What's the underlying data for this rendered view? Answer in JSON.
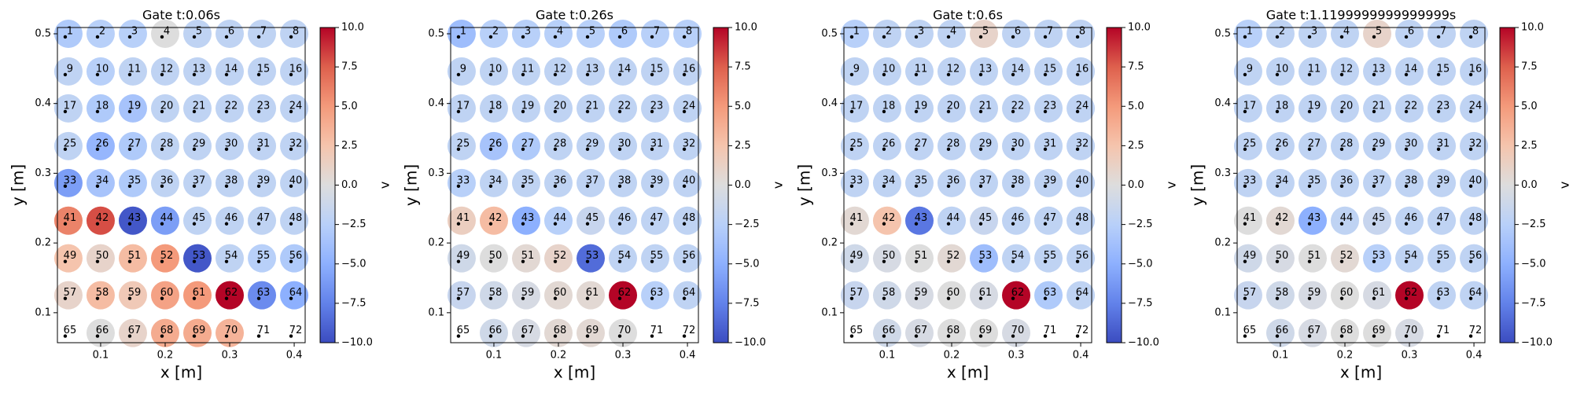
{
  "chart_data": [
    {
      "type": "scatter",
      "title": "Gate t:0.06s",
      "xlabel": "x [m]",
      "ylabel": "y [m]",
      "colorbar_label": "v",
      "colormap": "coolwarm",
      "xlim": [
        0.033,
        0.417
      ],
      "ylim": [
        0.057,
        0.509
      ],
      "xticks": [
        0.1,
        0.2,
        0.3,
        0.4
      ],
      "yticks": [
        0.1,
        0.2,
        0.3,
        0.4,
        0.5
      ],
      "clim": [
        -10,
        10
      ],
      "cticks": [
        {
          "value": -10,
          "label": "−10.0"
        },
        {
          "value": -7.5,
          "label": "−7.5"
        },
        {
          "value": -5,
          "label": "−5.0"
        },
        {
          "value": -2.5,
          "label": "−2.5"
        },
        {
          "value": 0,
          "label": "0.0"
        },
        2.5,
        {
          "value": 5,
          "label": "5.0"
        },
        7.5,
        {
          "value": 10,
          "label": "10.0"
        }
      ],
      "x": [
        0.05,
        0.1,
        0.15,
        0.2,
        0.25,
        0.3,
        0.35,
        0.4
      ],
      "y": [
        0.5,
        0.446,
        0.393,
        0.339,
        0.286,
        0.232,
        0.178,
        0.125,
        0.071
      ],
      "labels": [
        [
          1,
          2,
          3,
          4,
          5,
          6,
          7,
          8
        ],
        [
          9,
          10,
          11,
          12,
          13,
          14,
          15,
          16
        ],
        [
          17,
          18,
          19,
          20,
          21,
          22,
          23,
          24
        ],
        [
          25,
          26,
          27,
          28,
          29,
          30,
          31,
          32
        ],
        [
          33,
          34,
          35,
          36,
          37,
          38,
          39,
          40
        ],
        [
          41,
          42,
          43,
          44,
          45,
          46,
          47,
          48
        ],
        [
          49,
          50,
          51,
          52,
          53,
          54,
          55,
          56
        ],
        [
          57,
          58,
          59,
          60,
          61,
          62,
          63,
          64
        ],
        [
          65,
          66,
          67,
          68,
          69,
          70,
          71,
          72
        ]
      ],
      "values": [
        [
          -3,
          -2.5,
          -2.5,
          0,
          -2,
          -2,
          -2,
          -2
        ],
        [
          -2,
          -2.5,
          -2,
          -2,
          -2,
          -2,
          -2,
          -2
        ],
        [
          -2,
          -3,
          -3.5,
          -2,
          -2,
          -2,
          -2,
          -2
        ],
        [
          -2,
          -4.5,
          -3,
          -2,
          -2,
          -2,
          -2,
          -2
        ],
        [
          -6,
          -3.5,
          -3,
          -2,
          -2,
          -2,
          -2,
          -2
        ],
        [
          6,
          8,
          -9.5,
          -6,
          -2,
          -2,
          -2,
          -2
        ],
        [
          2.5,
          1,
          3,
          5,
          -9.5,
          -2,
          -2.5,
          -3
        ],
        [
          1,
          3,
          2,
          4.5,
          5,
          10,
          -7,
          -5
        ],
        [
          null,
          0,
          1,
          4,
          4,
          3.5,
          null,
          null
        ]
      ]
    },
    {
      "type": "scatter",
      "title": "Gate t:0.26s",
      "xlabel": "x [m]",
      "ylabel": "y [m]",
      "colorbar_label": "v",
      "colormap": "coolwarm",
      "xlim": [
        0.033,
        0.417
      ],
      "ylim": [
        0.057,
        0.509
      ],
      "xticks": [
        0.1,
        0.2,
        0.3,
        0.4
      ],
      "yticks": [
        0.1,
        0.2,
        0.3,
        0.4,
        0.5
      ],
      "clim": [
        -10,
        10
      ],
      "cticks": [
        {
          "value": -10,
          "label": "−10.0"
        },
        {
          "value": -7.5,
          "label": "−7.5"
        },
        {
          "value": -5,
          "label": "−5.0"
        },
        {
          "value": -2.5,
          "label": "−2.5"
        },
        {
          "value": 0,
          "label": "0.0"
        },
        2.5,
        {
          "value": 5,
          "label": "5.0"
        },
        7.5,
        {
          "value": 10,
          "label": "10.0"
        }
      ],
      "x": [
        0.05,
        0.1,
        0.15,
        0.2,
        0.25,
        0.3,
        0.35,
        0.4
      ],
      "y": [
        0.5,
        0.446,
        0.393,
        0.339,
        0.286,
        0.232,
        0.178,
        0.125,
        0.071
      ],
      "labels": [
        [
          1,
          2,
          3,
          4,
          5,
          6,
          7,
          8
        ],
        [
          9,
          10,
          11,
          12,
          13,
          14,
          15,
          16
        ],
        [
          17,
          18,
          19,
          20,
          21,
          22,
          23,
          24
        ],
        [
          25,
          26,
          27,
          28,
          29,
          30,
          31,
          32
        ],
        [
          33,
          34,
          35,
          36,
          37,
          38,
          39,
          40
        ],
        [
          41,
          42,
          43,
          44,
          45,
          46,
          47,
          48
        ],
        [
          49,
          50,
          51,
          52,
          53,
          54,
          55,
          56
        ],
        [
          57,
          58,
          59,
          60,
          61,
          62,
          63,
          64
        ],
        [
          65,
          66,
          67,
          68,
          69,
          70,
          71,
          72
        ]
      ],
      "values": [
        [
          -4,
          -2.5,
          -2.5,
          -2.5,
          -2.5,
          -3,
          -2.5,
          -2.5
        ],
        [
          -2,
          -2,
          -2,
          -2,
          -2,
          -2,
          -2,
          -2
        ],
        [
          -2,
          -2,
          -2,
          -2,
          -2,
          -2,
          -2,
          -2
        ],
        [
          -2,
          -3.5,
          -3,
          -2,
          -2,
          -2,
          -2,
          -2
        ],
        [
          -2.5,
          -2,
          -2,
          -2,
          -2,
          -2,
          -2,
          -2
        ],
        [
          1.5,
          3,
          -5,
          -2.5,
          -1.5,
          -2,
          -2,
          -2
        ],
        [
          -1,
          0,
          0.5,
          1,
          -8.5,
          -2,
          -2,
          -2
        ],
        [
          -1.5,
          -1,
          -0.5,
          0.5,
          0.5,
          10,
          -2.5,
          -2
        ],
        [
          null,
          -1,
          -0.5,
          0.5,
          0.5,
          0,
          null,
          null
        ]
      ]
    },
    {
      "type": "scatter",
      "title": "Gate t:0.6s",
      "xlabel": "x [m]",
      "ylabel": "y [m]",
      "colorbar_label": "v",
      "colormap": "coolwarm",
      "xlim": [
        0.033,
        0.417
      ],
      "ylim": [
        0.057,
        0.509
      ],
      "xticks": [
        0.1,
        0.2,
        0.3,
        0.4
      ],
      "yticks": [
        0.1,
        0.2,
        0.3,
        0.4,
        0.5
      ],
      "clim": [
        -10,
        10
      ],
      "cticks": [
        {
          "value": -10,
          "label": "−10.0"
        },
        {
          "value": -7.5,
          "label": "−7.5"
        },
        {
          "value": -5,
          "label": "−5.0"
        },
        {
          "value": -2.5,
          "label": "−2.5"
        },
        {
          "value": 0,
          "label": "0.0"
        },
        2.5,
        {
          "value": 5,
          "label": "5.0"
        },
        7.5,
        {
          "value": 10,
          "label": "10.0"
        }
      ],
      "x": [
        0.05,
        0.1,
        0.15,
        0.2,
        0.25,
        0.3,
        0.35,
        0.4
      ],
      "y": [
        0.5,
        0.446,
        0.393,
        0.339,
        0.286,
        0.232,
        0.178,
        0.125,
        0.071
      ],
      "labels": [
        [
          1,
          2,
          3,
          4,
          5,
          6,
          7,
          8
        ],
        [
          9,
          10,
          11,
          12,
          13,
          14,
          15,
          16
        ],
        [
          17,
          18,
          19,
          20,
          21,
          22,
          23,
          24
        ],
        [
          25,
          26,
          27,
          28,
          29,
          30,
          31,
          32
        ],
        [
          33,
          34,
          35,
          36,
          37,
          38,
          39,
          40
        ],
        [
          41,
          42,
          43,
          44,
          45,
          46,
          47,
          48
        ],
        [
          49,
          50,
          51,
          52,
          53,
          54,
          55,
          56
        ],
        [
          57,
          58,
          59,
          60,
          61,
          62,
          63,
          64
        ],
        [
          65,
          66,
          67,
          68,
          69,
          70,
          71,
          72
        ]
      ],
      "values": [
        [
          -2.5,
          -2,
          -2,
          -2,
          1,
          -2,
          -2,
          -2
        ],
        [
          -2,
          -2,
          -2,
          -2,
          -2,
          -2,
          -2,
          -2
        ],
        [
          -2,
          -2,
          -2,
          -2,
          -2,
          -2,
          -2,
          -2
        ],
        [
          -2,
          -2,
          -2,
          -2,
          -2,
          -2,
          -2,
          -2
        ],
        [
          -2,
          -2,
          -2,
          -2,
          -2,
          -2,
          -2,
          -2
        ],
        [
          0.5,
          2.5,
          -8,
          -2,
          -1.5,
          -2,
          -2,
          -2
        ],
        [
          -1,
          -0.5,
          0,
          0.5,
          -4,
          -2,
          -2,
          -2
        ],
        [
          -1.5,
          -1,
          -0.5,
          0,
          -0.5,
          10,
          -3,
          -2
        ],
        [
          null,
          -1,
          -0.5,
          0,
          0,
          -0.5,
          null,
          null
        ]
      ]
    },
    {
      "type": "scatter",
      "title": "Gate t:1.1199999999999999s",
      "xlabel": "x [m]",
      "ylabel": "y [m]",
      "colorbar_label": "v",
      "colormap": "coolwarm",
      "xlim": [
        0.033,
        0.417
      ],
      "ylim": [
        0.057,
        0.509
      ],
      "xticks": [
        0.1,
        0.2,
        0.3,
        0.4
      ],
      "yticks": [
        0.1,
        0.2,
        0.3,
        0.4,
        0.5
      ],
      "clim": [
        -10,
        10
      ],
      "cticks": [
        {
          "value": -10,
          "label": "−10.0"
        },
        {
          "value": -7.5,
          "label": "−7.5"
        },
        {
          "value": -5,
          "label": "−5.0"
        },
        {
          "value": -2.5,
          "label": "−2.5"
        },
        {
          "value": 0,
          "label": "0.0"
        },
        2.5,
        {
          "value": 5,
          "label": "5.0"
        },
        7.5,
        {
          "value": 10,
          "label": "10.0"
        }
      ],
      "x": [
        0.05,
        0.1,
        0.15,
        0.2,
        0.25,
        0.3,
        0.35,
        0.4
      ],
      "y": [
        0.5,
        0.446,
        0.393,
        0.339,
        0.286,
        0.232,
        0.178,
        0.125,
        0.071
      ],
      "labels": [
        [
          1,
          2,
          3,
          4,
          5,
          6,
          7,
          8
        ],
        [
          9,
          10,
          11,
          12,
          13,
          14,
          15,
          16
        ],
        [
          17,
          18,
          19,
          20,
          21,
          22,
          23,
          24
        ],
        [
          25,
          26,
          27,
          28,
          29,
          30,
          31,
          32
        ],
        [
          33,
          34,
          35,
          36,
          37,
          38,
          39,
          40
        ],
        [
          41,
          42,
          43,
          44,
          45,
          46,
          47,
          48
        ],
        [
          49,
          50,
          51,
          52,
          53,
          54,
          55,
          56
        ],
        [
          57,
          58,
          59,
          60,
          61,
          62,
          63,
          64
        ],
        [
          65,
          66,
          67,
          68,
          69,
          70,
          71,
          72
        ]
      ],
      "values": [
        [
          -2.5,
          -2,
          -2,
          -2,
          1,
          -2,
          -2,
          -2
        ],
        [
          -2,
          -2,
          -2,
          -2,
          -2,
          -2,
          -2,
          -2
        ],
        [
          -2,
          -2,
          -2,
          -2,
          -2,
          -2,
          -2,
          -2
        ],
        [
          -2,
          -2,
          -2,
          -2,
          -2,
          -2,
          -2,
          -2
        ],
        [
          -2,
          -2,
          -2,
          -2,
          -2,
          -2,
          -2,
          -2
        ],
        [
          0,
          0.5,
          -5,
          -2,
          -1.5,
          -2,
          -2,
          -2
        ],
        [
          -1,
          -0.5,
          0,
          0.5,
          -2.5,
          -2,
          -2,
          -2
        ],
        [
          -1.5,
          -1,
          -0.5,
          0,
          -0.5,
          10,
          -2,
          -2
        ],
        [
          null,
          -1,
          -0.5,
          0,
          0,
          -0.5,
          null,
          null
        ]
      ]
    }
  ]
}
